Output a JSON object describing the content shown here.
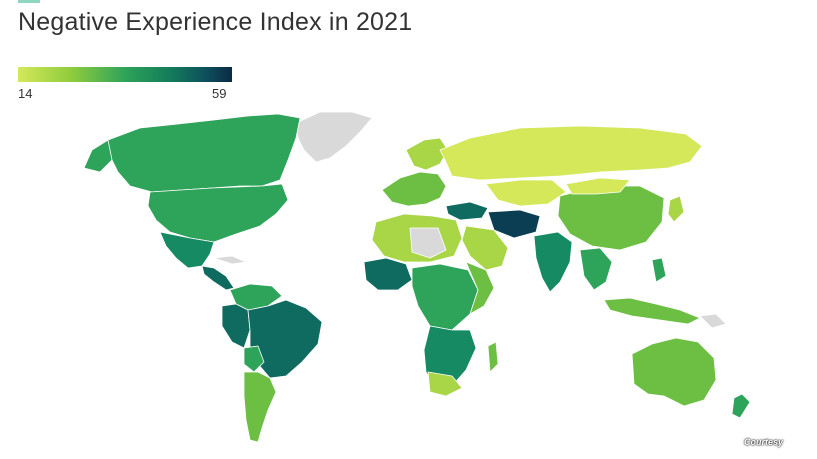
{
  "title": "Negative Experience Index in 2021",
  "legend": {
    "min": "14",
    "max": "59",
    "colors": [
      "#d4e85a",
      "#8fcc3c",
      "#2ea35a",
      "#137a5a",
      "#0d4f5c",
      "#0b2a45"
    ]
  },
  "colors": {
    "no_data": "#d9d9d9",
    "very_low": "#d4e85a",
    "low": "#a9d646",
    "mid_low": "#6cbf43",
    "mid": "#2ea35a",
    "mid_high": "#158a63",
    "high": "#0f6b60",
    "very_high": "#0b3e52"
  },
  "watermark": "Courtesy"
}
